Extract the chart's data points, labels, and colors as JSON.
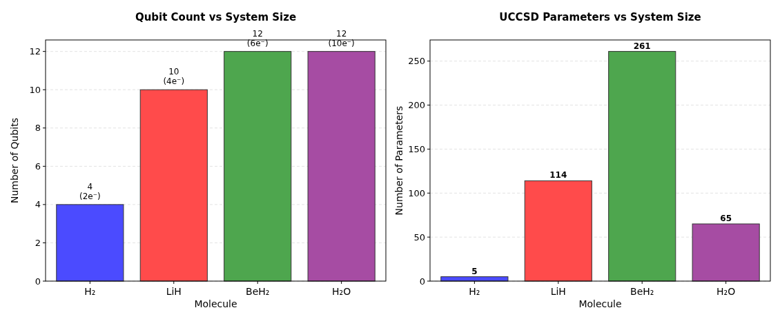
{
  "chart_data": [
    {
      "type": "bar",
      "title": "Qubit Count vs System Size",
      "xlabel": "Molecule",
      "ylabel": "Number of Qubits",
      "categories": [
        "H₂",
        "LiH",
        "BeH₂",
        "H₂O"
      ],
      "values": [
        4,
        10,
        12,
        12
      ],
      "colors": [
        "#4b4bff",
        "#ff4b4b",
        "#4ea64e",
        "#a64ca3"
      ],
      "value_labels": [
        "4\n(2e⁻)",
        "10\n(4e⁻)",
        "12\n(6e⁻)",
        "12\n(10e⁻)"
      ],
      "ylim": [
        0,
        12.6
      ],
      "yticks": [
        0,
        2,
        4,
        6,
        8,
        10,
        12
      ],
      "grid": "y"
    },
    {
      "type": "bar",
      "title": "UCCSD Parameters vs System Size",
      "xlabel": "Molecule",
      "ylabel": "Number of Parameters",
      "categories": [
        "H₂",
        "LiH",
        "BeH₂",
        "H₂O"
      ],
      "values": [
        5,
        114,
        261,
        65
      ],
      "colors": [
        "#4b4bff",
        "#ff4b4b",
        "#4ea64e",
        "#a64ca3"
      ],
      "data_labels": true,
      "ylim": [
        0,
        274
      ],
      "yticks": [
        0,
        50,
        100,
        150,
        200,
        250
      ],
      "grid": "y"
    }
  ]
}
